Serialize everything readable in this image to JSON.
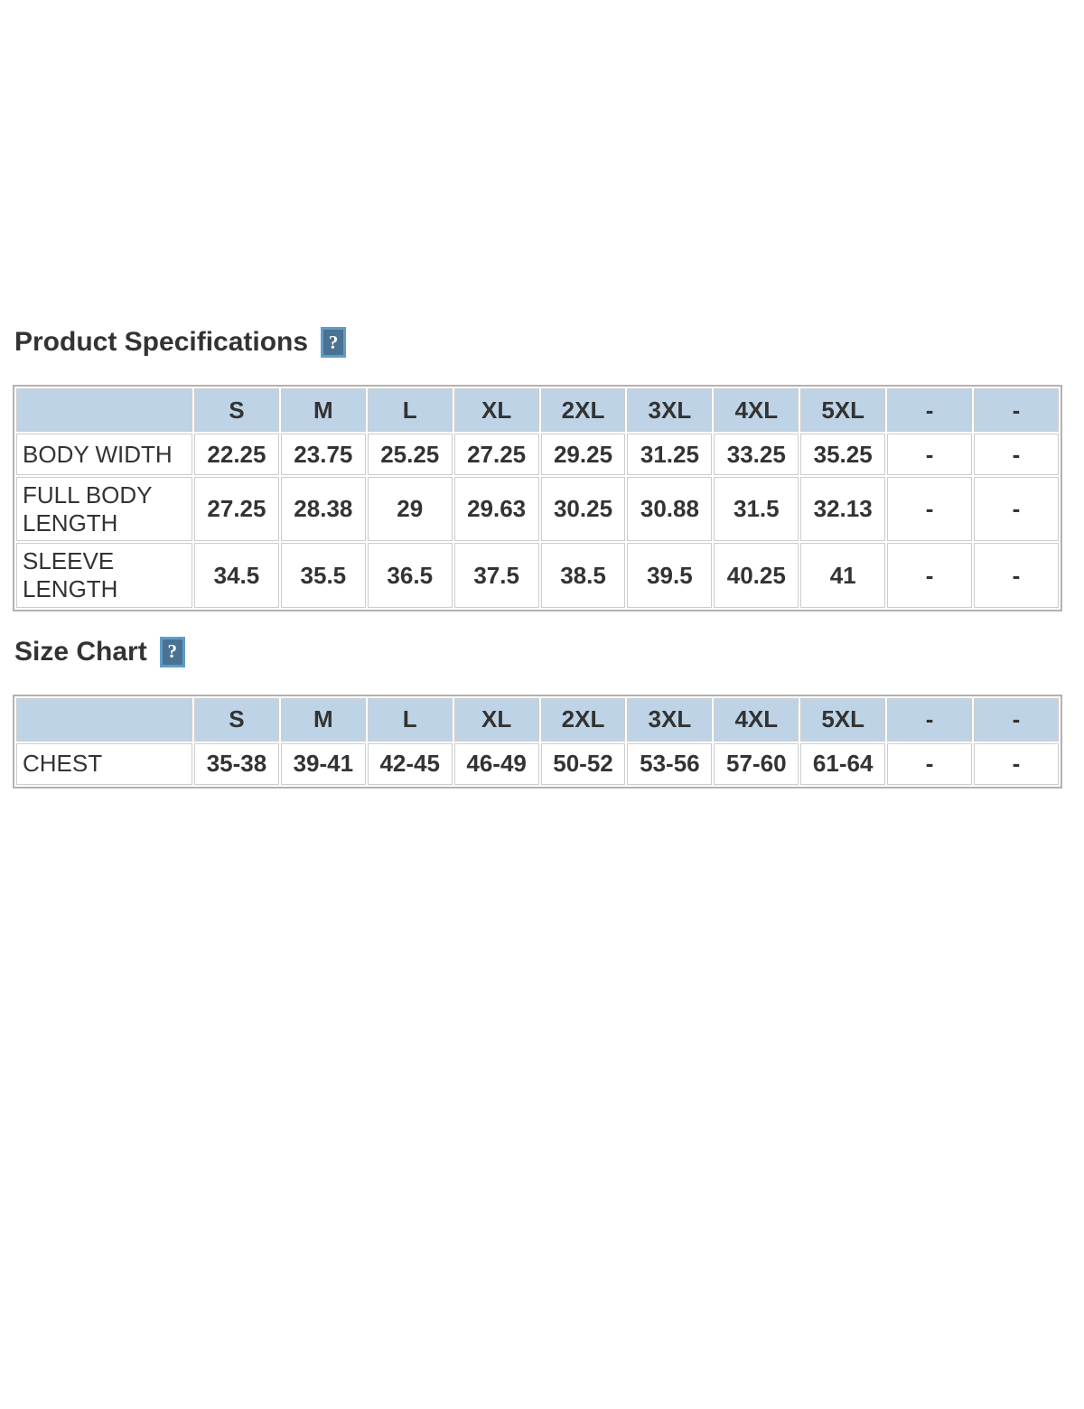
{
  "sections": [
    {
      "title": "Product Specifications",
      "help_icon": "?",
      "table": {
        "columns": [
          "",
          "S",
          "M",
          "L",
          "XL",
          "2XL",
          "3XL",
          "4XL",
          "5XL",
          "-",
          "-"
        ],
        "rows": [
          {
            "label": "BODY WIDTH",
            "values": [
              "22.25",
              "23.75",
              "25.25",
              "27.25",
              "29.25",
              "31.25",
              "33.25",
              "35.25",
              "-",
              "-"
            ]
          },
          {
            "label": "FULL BODY LENGTH",
            "values": [
              "27.25",
              "28.38",
              "29",
              "29.63",
              "30.25",
              "30.88",
              "31.5",
              "32.13",
              "-",
              "-"
            ]
          },
          {
            "label": "SLEEVE LENGTH",
            "values": [
              "34.5",
              "35.5",
              "36.5",
              "37.5",
              "38.5",
              "39.5",
              "40.25",
              "41",
              "-",
              "-"
            ]
          }
        ]
      }
    },
    {
      "title": "Size Chart",
      "help_icon": "?",
      "table": {
        "columns": [
          "",
          "S",
          "M",
          "L",
          "XL",
          "2XL",
          "3XL",
          "4XL",
          "5XL",
          "-",
          "-"
        ],
        "rows": [
          {
            "label": "CHEST",
            "values": [
              "35-38",
              "39-41",
              "42-45",
              "46-49",
              "50-52",
              "53-56",
              "57-60",
              "61-64",
              "-",
              "-"
            ]
          }
        ]
      }
    }
  ],
  "colors": {
    "header_bg": "#bed4e6",
    "help_icon_bg": "#4a7292",
    "help_icon_border": "#5f9cc8",
    "text": "#333333",
    "cell_border": "#cccccc",
    "table_border": "#b2b2b2"
  }
}
